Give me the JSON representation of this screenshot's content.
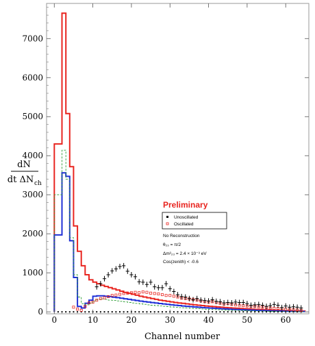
{
  "chart_data": {
    "type": "line",
    "xlabel": "Channel number",
    "ylabel_top": "dN",
    "ylabel_bottom_main": "dt ΔN",
    "ylabel_bottom_sub": "ch",
    "xlim": [
      -2,
      66
    ],
    "ylim": [
      -50,
      7900
    ],
    "xticks": [
      0,
      10,
      20,
      30,
      40,
      50,
      60
    ],
    "yticks": [
      0,
      1000,
      2000,
      3000,
      4000,
      5000,
      6000,
      7000
    ],
    "grid": false,
    "bin_edges": [
      0,
      2,
      3,
      4,
      5,
      6,
      7,
      8,
      9,
      10,
      11,
      12,
      13,
      14,
      15,
      16,
      17,
      18,
      19,
      20,
      21,
      22,
      23,
      24,
      25,
      26,
      27,
      28,
      29,
      30,
      31,
      32,
      33,
      34,
      35,
      36,
      37,
      38,
      39,
      40,
      41,
      42,
      43,
      44,
      45,
      46,
      47,
      48,
      49,
      50,
      51,
      52,
      53,
      54,
      55,
      56,
      57,
      58,
      59,
      60,
      61,
      62,
      63,
      64,
      65
    ],
    "series": [
      {
        "color": "#e8241f",
        "style": "step",
        "values": [
          4300,
          7650,
          5080,
          3720,
          2200,
          1550,
          1180,
          950,
          820,
          760,
          720,
          680,
          650,
          620,
          590,
          560,
          530,
          500,
          475,
          450,
          425,
          400,
          380,
          360,
          340,
          320,
          300,
          285,
          270,
          255,
          240,
          228,
          216,
          204,
          192,
          180,
          170,
          160,
          150,
          142,
          134,
          126,
          118,
          110,
          104,
          98,
          92,
          86,
          80,
          74,
          68,
          63,
          58,
          54,
          50,
          46,
          42,
          38,
          35,
          32,
          29,
          26,
          23,
          20,
          18
        ]
      },
      {
        "color": "#1f2fd6",
        "style": "step",
        "values": [
          1970,
          3560,
          3470,
          1820,
          880,
          140,
          100,
          220,
          300,
          400,
          410,
          410,
          400,
          390,
          375,
          365,
          350,
          335,
          320,
          305,
          290,
          275,
          262,
          250,
          238,
          226,
          214,
          202,
          190,
          180,
          170,
          160,
          150,
          142,
          134,
          126,
          118,
          110,
          104,
          98,
          92,
          86,
          80,
          74,
          68,
          63,
          58,
          54,
          50,
          46,
          42,
          38,
          35,
          32,
          29,
          26,
          23,
          20,
          18,
          16,
          14,
          12,
          11,
          10,
          9
        ]
      },
      {
        "color": "#2e9e36",
        "style": "dashed-step",
        "values": [
          3000,
          4140,
          3400,
          1900,
          950,
          380,
          210,
          180,
          220,
          280,
          320,
          330,
          320,
          300,
          290,
          280,
          270,
          255,
          240,
          228,
          216,
          204,
          192,
          180,
          170,
          160,
          150,
          142,
          134,
          126,
          118,
          110,
          104,
          98,
          92,
          86,
          80,
          74,
          68,
          63,
          58,
          54,
          50,
          46,
          42,
          38,
          35,
          32,
          29,
          26,
          23,
          20,
          18,
          16,
          14,
          12,
          11,
          10,
          9,
          8,
          7,
          6,
          5,
          5,
          4
        ]
      }
    ],
    "markers": {
      "unoscillated": {
        "x": [
          11,
          12,
          13,
          14,
          15,
          16,
          17,
          18,
          19,
          20,
          21,
          22,
          23,
          24,
          25,
          26,
          27,
          28,
          29,
          30,
          31,
          32,
          33,
          34,
          35,
          36,
          37,
          38,
          39,
          40,
          41,
          42,
          43,
          44,
          45,
          46,
          47,
          48,
          49,
          50,
          51,
          52,
          53,
          54,
          55,
          56,
          57,
          58,
          59,
          60,
          61,
          62,
          63,
          64
        ],
        "y": [
          640,
          720,
          850,
          950,
          1050,
          1100,
          1160,
          1180,
          1040,
          950,
          900,
          770,
          760,
          700,
          760,
          640,
          620,
          620,
          720,
          590,
          520,
          440,
          390,
          380,
          340,
          310,
          340,
          300,
          290,
          280,
          310,
          270,
          260,
          230,
          240,
          230,
          250,
          240,
          240,
          210,
          170,
          180,
          190,
          170,
          140,
          160,
          190,
          170,
          110,
          150,
          120,
          130,
          120,
          100
        ]
      },
      "oscillated": {
        "x": [
          5,
          6,
          7,
          8,
          9,
          10,
          11,
          12,
          13,
          14,
          15,
          16,
          17,
          18,
          19,
          20,
          21,
          22,
          23,
          24,
          25,
          26,
          27,
          28,
          29,
          30,
          31,
          32,
          33,
          34,
          35,
          36,
          37,
          38,
          39,
          40,
          41,
          42,
          43,
          44,
          45,
          46,
          47,
          48,
          49,
          50,
          51,
          52,
          53,
          54,
          55,
          56,
          57,
          58,
          59,
          60,
          61,
          62,
          63,
          64
        ],
        "y": [
          120,
          70,
          40,
          140,
          230,
          250,
          300,
          340,
          360,
          390,
          420,
          430,
          450,
          470,
          480,
          490,
          500,
          490,
          510,
          500,
          480,
          470,
          460,
          440,
          420,
          420,
          400,
          380,
          350,
          340,
          330,
          320,
          300,
          280,
          260,
          250,
          260,
          240,
          220,
          200,
          210,
          190,
          180,
          170,
          160,
          150,
          140,
          140,
          130,
          120,
          110,
          100,
          90,
          90,
          80,
          70,
          60,
          60,
          50,
          40
        ]
      },
      "baseline": {
        "x": [
          1,
          2,
          3,
          4,
          5,
          6,
          7,
          8,
          9,
          10,
          11,
          12,
          13,
          14,
          15,
          16,
          17,
          18,
          19,
          20,
          21,
          22,
          23,
          24,
          25,
          26,
          27,
          28,
          29,
          30,
          31,
          32,
          33,
          34,
          35,
          36,
          37,
          38,
          39,
          40,
          41,
          42,
          43,
          44,
          45,
          46,
          47,
          48,
          49,
          50,
          51,
          52,
          53,
          54,
          55,
          56,
          57,
          58,
          59,
          60,
          61,
          62,
          63,
          64
        ],
        "y": 0
      }
    },
    "legend": {
      "title": "Preliminary",
      "items": [
        "Unoscillated",
        "Oscillated"
      ],
      "notes": [
        "No Reconstruction",
        "θ₂₃ = π/2",
        "Δm²₂₃ = 2.4 × 10⁻³ eV",
        "Cos(zenith) < -0.6"
      ]
    }
  }
}
